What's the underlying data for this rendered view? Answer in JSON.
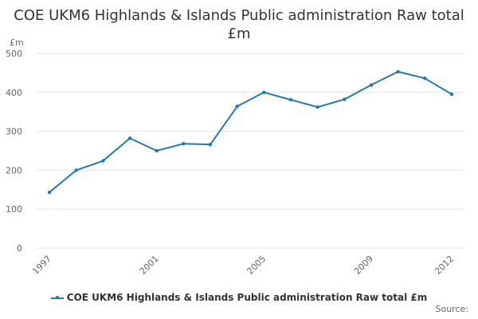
{
  "chart_data": {
    "type": "line",
    "title": "COE UKM6 Highlands & Islands Public administration Raw total £m",
    "ylabel": "£m",
    "xlabel": "",
    "ylim": [
      0,
      500
    ],
    "y_ticks": [
      0,
      100,
      200,
      300,
      400,
      500
    ],
    "x_ticks": [
      "1997",
      "2001",
      "2005",
      "2009",
      "2012"
    ],
    "grid": true,
    "legend_position": "bottom",
    "color": "#1f7ab5",
    "x": [
      "1997",
      "1998",
      "1999",
      "2000",
      "2001",
      "2002",
      "2003",
      "2004",
      "2005",
      "2006",
      "2007",
      "2008",
      "2009",
      "2010",
      "2011",
      "2012"
    ],
    "series": [
      {
        "name": "COE UKM6 Highlands & Islands Public administration Raw total £m",
        "values": [
          143,
          200,
          224,
          282,
          250,
          268,
          266,
          364,
          400,
          381,
          362,
          382,
          419,
          453,
          436,
          395
        ]
      }
    ]
  },
  "source_label": "Source:"
}
